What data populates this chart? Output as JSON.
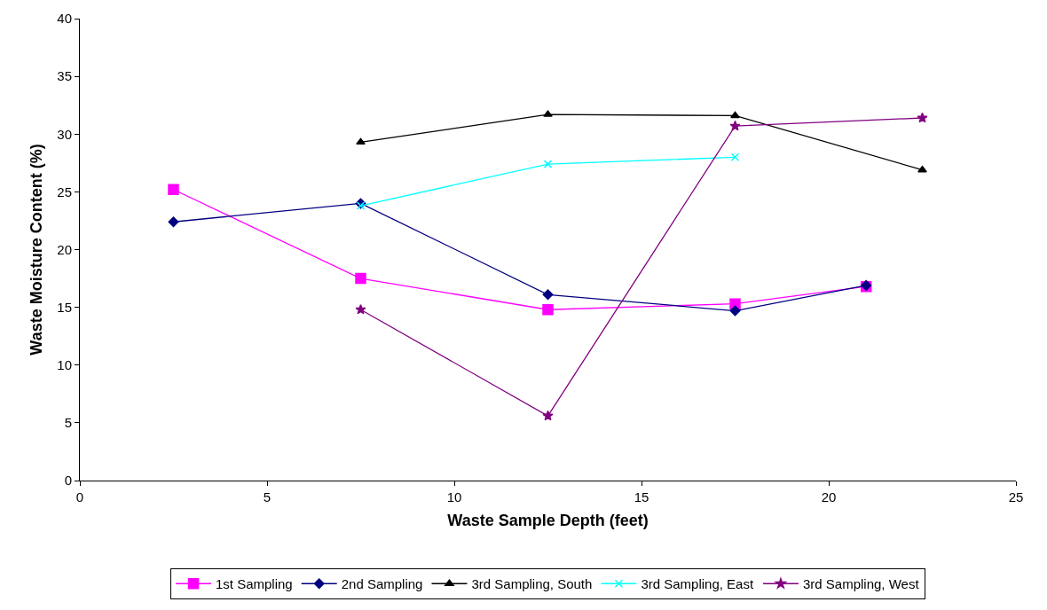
{
  "chart_data": {
    "type": "line",
    "xlabel": "Waste Sample Depth (feet)",
    "ylabel": "Waste Moisture Content (%)",
    "xlim": [
      0,
      25
    ],
    "xticks": [
      0,
      5,
      10,
      15,
      20,
      25
    ],
    "ylim": [
      0,
      40
    ],
    "yticks": [
      0,
      5,
      10,
      15,
      20,
      25,
      30,
      35,
      40
    ],
    "grid": false,
    "legend": "bottom",
    "series": [
      {
        "name": "1st Sampling",
        "color": "#ff00ff",
        "marker": "square",
        "x": [
          2.5,
          7.5,
          12.5,
          17.5,
          21
        ],
        "values": [
          25.2,
          17.5,
          14.8,
          15.3,
          16.8
        ]
      },
      {
        "name": "2nd Sampling",
        "color": "#000080",
        "marker": "diamond",
        "x": [
          2.5,
          7.5,
          12.5,
          17.5,
          21
        ],
        "values": [
          22.4,
          24.0,
          16.1,
          14.7,
          16.9
        ]
      },
      {
        "name": "3rd Sampling, South",
        "color": "#000000",
        "marker": "triangle",
        "x": [
          7.5,
          12.5,
          17.5,
          22.5
        ],
        "values": [
          29.3,
          31.7,
          31.6,
          26.9
        ]
      },
      {
        "name": "3rd Sampling, East",
        "color": "#00ffff",
        "marker": "cross",
        "x": [
          7.5,
          12.5,
          17.5
        ],
        "values": [
          23.8,
          27.4,
          28.0
        ]
      },
      {
        "name": "3rd Sampling, West",
        "color": "#800080",
        "marker": "star",
        "x": [
          7.5,
          12.5,
          17.5,
          22.5
        ],
        "values": [
          14.8,
          5.6,
          30.7,
          31.4
        ]
      }
    ]
  }
}
